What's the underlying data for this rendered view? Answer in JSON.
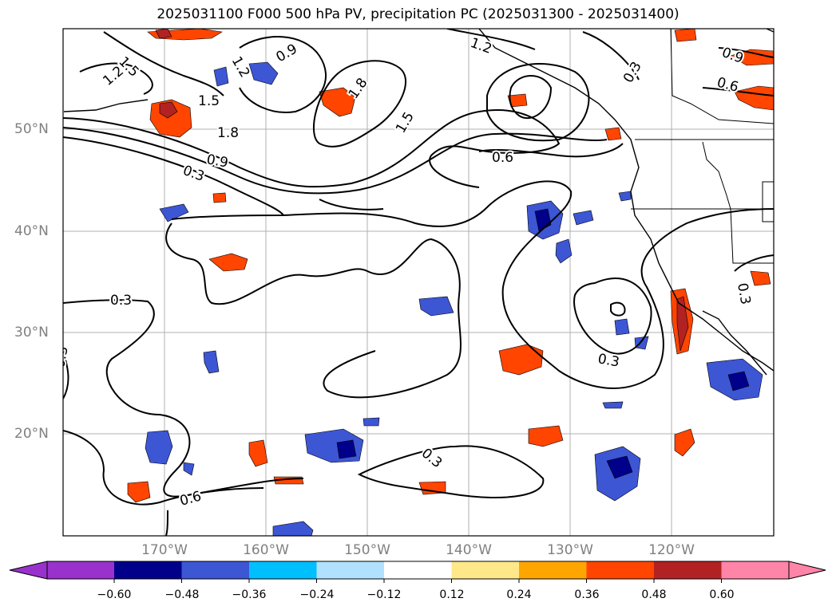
{
  "title": "2025031100 F000 500 hPa PV, precipitation PC (2025031300 - 2025031400)",
  "lat_labels": [
    "50°N",
    "40°N",
    "30°N",
    "20°N"
  ],
  "lon_labels": [
    "170°W",
    "160°W",
    "150°W",
    "140°W",
    "130°W",
    "120°W"
  ],
  "contour_labels": [
    "1.5",
    "1.2",
    "1.2",
    "0.9",
    "1.5",
    "1.8",
    "1.8",
    "0.9",
    "0.3",
    "1.5",
    "1.2",
    "0.6",
    "0.9",
    "0.6",
    "0.3",
    "0.3",
    "0.3",
    "0.6",
    "0.3",
    "0.3",
    "0.3"
  ],
  "colorbar": {
    "ticks": [
      "−0.60",
      "−0.48",
      "−0.36",
      "−0.24",
      "−0.12",
      "0.12",
      "0.24",
      "0.36",
      "0.48",
      "0.60"
    ],
    "colors": [
      "#9932cc",
      "#00008b",
      "#3d56d4",
      "#00bfff",
      "#b0e2ff",
      "#ffffff",
      "#ffe88a",
      "#ffa500",
      "#ff4500",
      "#b22222",
      "#ff85a8"
    ]
  },
  "colors": {
    "neg_strong": "#00008b",
    "neg": "#3d56d4",
    "neg_light": "#00bfff",
    "pos_light": "#ffe88a",
    "pos": "#ff4500",
    "pos_strong": "#b22222"
  }
}
